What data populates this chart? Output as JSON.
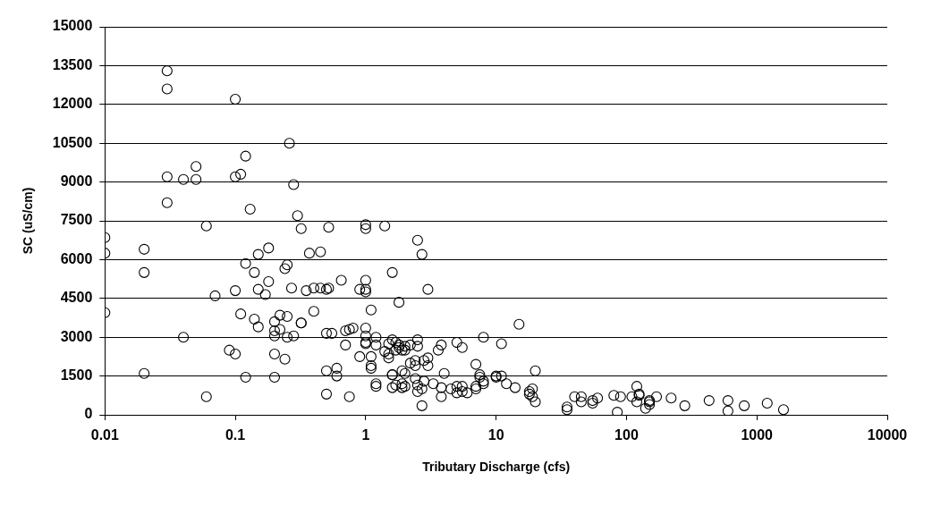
{
  "chart_data": {
    "type": "scatter",
    "xlabel": "Tributary Discharge (cfs)",
    "ylabel": "SC (uS/cm)",
    "log": "x",
    "grid": "y",
    "legend": false,
    "marker": "circle",
    "xlim": [
      0.01,
      10000
    ],
    "xticks": [
      0.01,
      0.1,
      1,
      10,
      100,
      1000,
      10000
    ],
    "ylim": [
      0,
      15000
    ],
    "yticks": [
      0,
      1500,
      3000,
      4500,
      6000,
      7500,
      9000,
      10500,
      12000,
      13500,
      15000
    ],
    "series": [
      {
        "color": "#000000",
        "x": [
          0.01,
          0.01,
          0.01,
          0.02,
          0.02,
          0.02,
          0.03,
          0.03,
          0.03,
          0.03,
          0.04,
          0.04,
          0.05,
          0.05,
          0.06,
          0.06,
          0.07,
          0.09,
          0.1,
          0.1,
          0.1,
          0.1,
          0.11,
          0.11,
          0.12,
          0.12,
          0.12,
          0.13,
          0.14,
          0.14,
          0.15,
          0.15,
          0.15,
          0.17,
          0.18,
          0.18,
          0.2,
          0.2,
          0.2,
          0.2,
          0.2,
          0.22,
          0.22,
          0.24,
          0.24,
          0.25,
          0.25,
          0.25,
          0.26,
          0.27,
          0.28,
          0.28,
          0.3,
          0.32,
          0.32,
          0.32,
          0.35,
          0.37,
          0.4,
          0.4,
          0.45,
          0.45,
          0.5,
          0.5,
          0.5,
          0.5,
          0.52,
          0.52,
          0.55,
          0.6,
          0.6,
          0.65,
          0.7,
          0.7,
          0.75,
          0.75,
          0.8,
          0.9,
          0.9,
          1,
          1,
          1,
          1,
          1,
          1,
          1,
          1,
          1,
          1.1,
          1.1,
          1.1,
          1.1,
          1.2,
          1.2,
          1.2,
          1.2,
          1.4,
          1.4,
          1.5,
          1.5,
          1.5,
          1.6,
          1.6,
          1.6,
          1.6,
          1.6,
          1.7,
          1.7,
          1.7,
          1.8,
          1.8,
          1.8,
          1.9,
          1.9,
          1.9,
          1.9,
          2,
          2,
          2,
          2,
          2.2,
          2.2,
          2.4,
          2.4,
          2.4,
          2.5,
          2.5,
          2.5,
          2.5,
          2.5,
          2.7,
          2.7,
          2.7,
          2.8,
          2.8,
          3,
          3,
          3,
          3.3,
          3.6,
          3.8,
          3.8,
          3.8,
          4,
          4.5,
          5,
          5,
          5,
          5.5,
          5.5,
          5.5,
          6,
          7,
          7,
          7,
          7.5,
          7.5,
          8,
          8,
          8,
          10,
          10,
          11,
          11,
          12,
          14,
          15,
          18,
          18,
          19,
          19,
          20,
          20,
          35,
          35,
          40,
          45,
          45,
          55,
          55,
          60,
          80,
          85,
          90,
          110,
          120,
          120,
          125,
          125,
          140,
          150,
          150,
          150,
          170,
          220,
          280,
          430,
          600,
          600,
          800,
          1200,
          1600
        ],
        "values": [
          6850,
          6250,
          3950,
          6400,
          5500,
          1600,
          13300,
          12600,
          9200,
          8200,
          9100,
          3000,
          9600,
          9100,
          7300,
          700,
          4600,
          2500,
          12200,
          9200,
          4800,
          2350,
          9300,
          3900,
          10000,
          5850,
          1450,
          7950,
          5500,
          3700,
          6200,
          4850,
          3400,
          4650,
          6450,
          5150,
          3600,
          3250,
          3050,
          2350,
          1450,
          3850,
          3300,
          5650,
          2150,
          5800,
          3800,
          3000,
          10500,
          4900,
          8900,
          3050,
          7700,
          7200,
          3550,
          3550,
          4800,
          6250,
          4000,
          4900,
          6300,
          4900,
          3150,
          1700,
          800,
          4850,
          7250,
          4900,
          3150,
          1800,
          1500,
          5200,
          3250,
          2700,
          3300,
          700,
          3350,
          4850,
          2250,
          7350,
          7200,
          5200,
          4850,
          4750,
          3350,
          3050,
          2750,
          2800,
          4050,
          2250,
          1800,
          1900,
          3000,
          2700,
          1200,
          1100,
          7300,
          2450,
          2750,
          2200,
          2350,
          5500,
          2900,
          1550,
          1550,
          1050,
          2500,
          2800,
          1150,
          4350,
          2600,
          2700,
          2500,
          1700,
          1050,
          1200,
          2650,
          2500,
          1600,
          1100,
          2700,
          2000,
          2100,
          1400,
          1900,
          6750,
          2650,
          2900,
          900,
          1150,
          6200,
          1000,
          350,
          1300,
          2100,
          4850,
          1900,
          2200,
          1200,
          2500,
          2700,
          1050,
          700,
          1600,
          1000,
          2800,
          850,
          1100,
          2600,
          900,
          1100,
          850,
          1950,
          1000,
          1100,
          1450,
          1550,
          3000,
          1200,
          1300,
          1450,
          1500,
          2750,
          1500,
          1200,
          1050,
          3500,
          800,
          900,
          1000,
          700,
          1700,
          500,
          300,
          200,
          700,
          700,
          500,
          450,
          550,
          650,
          750,
          100,
          700,
          700,
          500,
          1100,
          800,
          750,
          250,
          500,
          550,
          400,
          700,
          650,
          350,
          550,
          550,
          150,
          350,
          450,
          200
        ]
      }
    ]
  }
}
